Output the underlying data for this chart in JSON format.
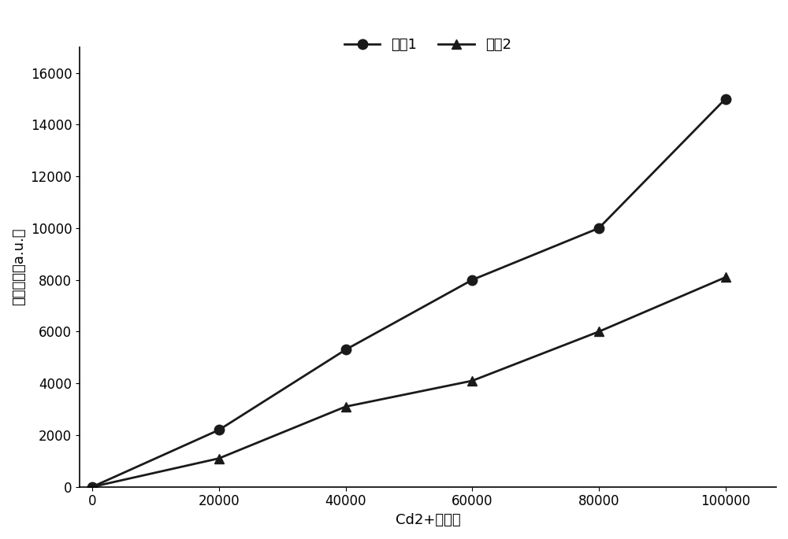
{
  "series1_x": [
    0,
    20000,
    40000,
    60000,
    80000,
    100000
  ],
  "series1_y": [
    0,
    2200,
    5300,
    8000,
    10000,
    15000
  ],
  "series2_x": [
    0,
    20000,
    40000,
    60000,
    80000,
    100000
  ],
  "series2_y": [
    0,
    1100,
    3100,
    4100,
    6000,
    8100
  ],
  "series1_label": "系列1",
  "series2_label": "系列2",
  "xlabel": "Cd2+的浓度",
  "ylabel": "荧光强度（a.u.）",
  "xlim": [
    -2000,
    108000
  ],
  "ylim": [
    0,
    17000
  ],
  "yticks": [
    0,
    2000,
    4000,
    6000,
    8000,
    10000,
    12000,
    14000,
    16000
  ],
  "xticks": [
    0,
    20000,
    40000,
    60000,
    80000,
    100000
  ],
  "line_color": "#1a1a1a",
  "marker1": "o",
  "marker2": "^",
  "marker_size": 9,
  "line_width": 2.0,
  "background_color": "#ffffff",
  "legend_position": "upper center",
  "axis_fontsize": 13,
  "tick_fontsize": 12,
  "legend_fontsize": 13
}
